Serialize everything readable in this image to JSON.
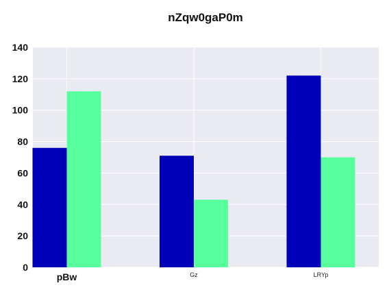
{
  "chart_data": {
    "type": "bar",
    "title": "nZqw0gaP0m",
    "xlabel": "",
    "ylabel": "",
    "categories": [
      "pBw",
      "Gz",
      "LRYp"
    ],
    "series": [
      {
        "values": [
          76,
          71,
          122
        ],
        "color": "#0000b8"
      },
      {
        "values": [
          112,
          43,
          70
        ],
        "color": "#57ff9d"
      }
    ],
    "ylim": [
      0,
      140
    ],
    "yticks": [
      "0",
      "20",
      "40",
      "60",
      "80",
      "100",
      "120",
      "140"
    ],
    "grid": true,
    "legend": "none",
    "plot_background": "#e9eaf2",
    "grid_color": "#ffffff"
  }
}
